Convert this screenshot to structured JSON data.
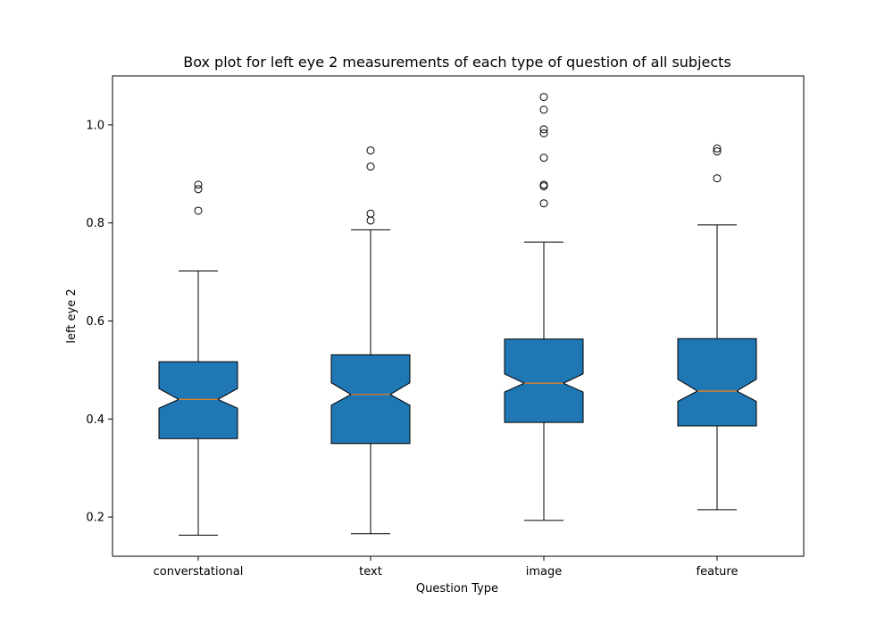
{
  "chart_data": {
    "type": "box",
    "title": "Box plot for left eye 2 measurements of each type of question of all subjects",
    "xlabel": "Question Type",
    "ylabel": "left eye 2",
    "ylim": [
      0.12,
      1.1
    ],
    "yticks": [
      0.2,
      0.4,
      0.6,
      0.8,
      1.0
    ],
    "ytick_labels": [
      "0.2",
      "0.4",
      "0.6",
      "0.8",
      "1.0"
    ],
    "grid": false,
    "notched": true,
    "colors": {
      "box_fill": "#1f77b4",
      "median": "#ff7f0e",
      "line": "#000000"
    },
    "categories": [
      "converstational",
      "text",
      "image",
      "feature"
    ],
    "boxes": [
      {
        "whisker_low": 0.163,
        "q1": 0.36,
        "median": 0.44,
        "q3": 0.517,
        "whisker_high": 0.702,
        "notch_low": 0.422,
        "notch_high": 0.462,
        "outliers": [
          0.825,
          0.869,
          0.878
        ]
      },
      {
        "whisker_low": 0.166,
        "q1": 0.35,
        "median": 0.45,
        "q3": 0.531,
        "whisker_high": 0.786,
        "notch_low": 0.428,
        "notch_high": 0.474,
        "outliers": [
          0.805,
          0.819,
          0.915,
          0.948
        ]
      },
      {
        "whisker_low": 0.193,
        "q1": 0.393,
        "median": 0.473,
        "q3": 0.563,
        "whisker_high": 0.761,
        "notch_low": 0.455,
        "notch_high": 0.492,
        "outliers": [
          0.84,
          0.875,
          0.878,
          0.933,
          0.983,
          0.991,
          1.031,
          1.057
        ]
      },
      {
        "whisker_low": 0.215,
        "q1": 0.386,
        "median": 0.457,
        "q3": 0.564,
        "whisker_high": 0.796,
        "notch_low": 0.436,
        "notch_high": 0.481,
        "outliers": [
          0.891,
          0.946,
          0.952
        ]
      }
    ]
  }
}
